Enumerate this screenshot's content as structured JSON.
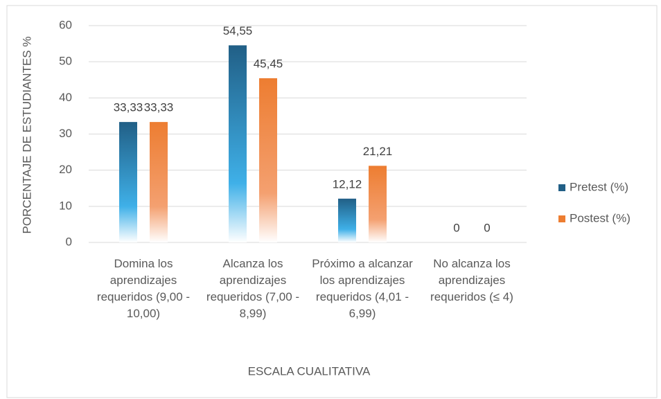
{
  "chart_data": {
    "type": "bar",
    "categories": [
      "Domina los aprendizajes requeridos (9,00 - 10,00)",
      "Alcanza los aprendizajes requeridos (7,00 - 8,99)",
      "Próximo a alcanzar los aprendizajes requeridos (4,01 - 6,99)",
      "No alcanza los aprendizajes requeridos (≤ 4)"
    ],
    "series": [
      {
        "name": "Pretest (%)",
        "color": "#215f86",
        "values": [
          33.33,
          54.55,
          12.12,
          0
        ],
        "value_labels": [
          "33,33",
          "54,55",
          "12,12",
          "0"
        ]
      },
      {
        "name": "Postest (%)",
        "color": "#ed7d31",
        "values": [
          33.33,
          45.45,
          21.21,
          0
        ],
        "value_labels": [
          "33,33",
          "45,45",
          "21,21",
          "0"
        ]
      }
    ],
    "ylabel": "PORCENTAJE DE ESTUDIANTES %",
    "xlabel": "ESCALA CUALITATIVA",
    "ylim": [
      0,
      60
    ],
    "yticks": [
      0,
      10,
      20,
      30,
      40,
      50,
      60
    ],
    "grid": true,
    "legend": "right"
  }
}
